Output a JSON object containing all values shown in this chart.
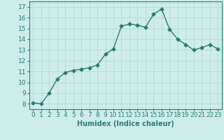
{
  "x": [
    0,
    1,
    2,
    3,
    4,
    5,
    6,
    7,
    8,
    9,
    10,
    11,
    12,
    13,
    14,
    15,
    16,
    17,
    18,
    19,
    20,
    21,
    22,
    23
  ],
  "y": [
    8.1,
    8.0,
    9.0,
    10.3,
    10.9,
    11.1,
    11.2,
    11.35,
    11.6,
    12.6,
    13.1,
    15.2,
    15.4,
    15.3,
    15.1,
    16.3,
    16.8,
    14.9,
    14.0,
    13.5,
    13.0,
    13.2,
    13.5,
    13.1
  ],
  "line_color": "#2e7d6e",
  "marker": "D",
  "marker_size": 2.5,
  "line_width": 1.0,
  "bg_color": "#cdecea",
  "grid_color": "#aed8d4",
  "xlabel": "Humidex (Indice chaleur)",
  "xlabel_fontsize": 7,
  "tick_fontsize": 6.5,
  "xlim": [
    -0.5,
    23.5
  ],
  "ylim": [
    7.5,
    17.5
  ],
  "yticks": [
    8,
    9,
    10,
    11,
    12,
    13,
    14,
    15,
    16,
    17
  ],
  "xticks": [
    0,
    1,
    2,
    3,
    4,
    5,
    6,
    7,
    8,
    9,
    10,
    11,
    12,
    13,
    14,
    15,
    16,
    17,
    18,
    19,
    20,
    21,
    22,
    23
  ]
}
